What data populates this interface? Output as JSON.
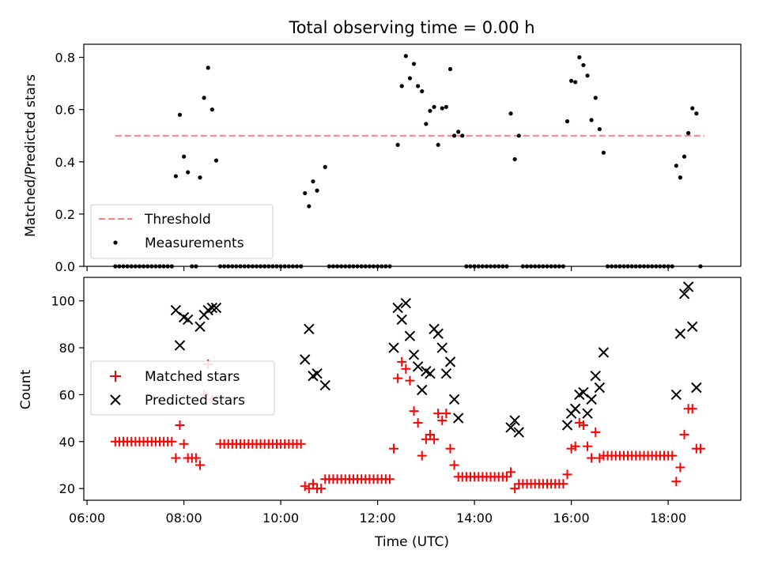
{
  "figure": {
    "title": "Total observing time = 0.00 h"
  },
  "chart_data": [
    {
      "type": "scatter",
      "ylabel": "Matched/Predicted stars",
      "xlim": [
        "06:00",
        "19:30"
      ],
      "ylim": [
        0,
        0.85
      ],
      "yticks": [
        "0.0",
        "0.2",
        "0.4",
        "0.6",
        "0.8"
      ],
      "legend": {
        "position": "lower-left",
        "entries": [
          "Threshold",
          "Measurements"
        ]
      },
      "threshold": {
        "name": "Threshold",
        "value": 0.5,
        "x_range": [
          "06:35",
          "18:45"
        ],
        "color": "#ff7f7f"
      },
      "series": [
        {
          "name": "Measurements",
          "color": "#000000",
          "points": [
            [
              "07:50",
              0.345
            ],
            [
              "07:55",
              0.58
            ],
            [
              "08:00",
              0.42
            ],
            [
              "08:05",
              0.36
            ],
            [
              "08:10",
              0.0
            ],
            [
              "08:15",
              0.0
            ],
            [
              "08:20",
              0.34
            ],
            [
              "08:25",
              0.645
            ],
            [
              "08:30",
              0.76
            ],
            [
              "08:35",
              0.6
            ],
            [
              "08:40",
              0.405
            ],
            [
              "10:30",
              0.28
            ],
            [
              "10:35",
              0.23
            ],
            [
              "10:40",
              0.325
            ],
            [
              "10:45",
              0.29
            ],
            [
              "10:55",
              0.38
            ],
            [
              "12:25",
              0.465
            ],
            [
              "12:30",
              0.69
            ],
            [
              "12:35",
              0.805
            ],
            [
              "12:40",
              0.72
            ],
            [
              "12:45",
              0.775
            ],
            [
              "12:50",
              0.69
            ],
            [
              "12:55",
              0.67
            ],
            [
              "13:00",
              0.545
            ],
            [
              "13:05",
              0.595
            ],
            [
              "13:10",
              0.61
            ],
            [
              "13:15",
              0.465
            ],
            [
              "13:20",
              0.605
            ],
            [
              "13:25",
              0.61
            ],
            [
              "13:30",
              0.755
            ],
            [
              "13:35",
              0.5
            ],
            [
              "13:40",
              0.515
            ],
            [
              "13:45",
              0.5
            ],
            [
              "14:45",
              0.585
            ],
            [
              "14:50",
              0.41
            ],
            [
              "14:55",
              0.5
            ],
            [
              "15:55",
              0.555
            ],
            [
              "16:00",
              0.71
            ],
            [
              "16:05",
              0.705
            ],
            [
              "16:10",
              0.8
            ],
            [
              "16:15",
              0.77
            ],
            [
              "16:20",
              0.73
            ],
            [
              "16:25",
              0.56
            ],
            [
              "16:30",
              0.645
            ],
            [
              "16:35",
              0.525
            ],
            [
              "16:40",
              0.435
            ],
            [
              "18:10",
              0.385
            ],
            [
              "18:15",
              0.34
            ],
            [
              "18:20",
              0.42
            ],
            [
              "18:25",
              0.51
            ],
            [
              "18:30",
              0.605
            ],
            [
              "18:35",
              0.585
            ],
            [
              "18:40",
              0.0
            ]
          ],
          "zero_runs": [
            [
              "06:35",
              "07:45"
            ],
            [
              "08:45",
              "10:25"
            ],
            [
              "11:00",
              "12:15"
            ],
            [
              "13:50",
              "14:40"
            ],
            [
              "15:00",
              "15:50"
            ],
            [
              "16:45",
              "18:05"
            ]
          ],
          "zero_step_minutes": 5
        }
      ]
    },
    {
      "type": "scatter",
      "xlabel": "Time (UTC)",
      "ylabel": "Count",
      "xticks": [
        "06:00",
        "08:00",
        "10:00",
        "12:00",
        "14:00",
        "16:00",
        "18:00"
      ],
      "ylim": [
        15,
        110
      ],
      "yticks": [
        "20",
        "40",
        "60",
        "80",
        "100"
      ],
      "legend": {
        "position": "center-left",
        "entries": [
          "Matched stars",
          "Predicted stars"
        ]
      },
      "series": [
        {
          "name": "Matched stars",
          "marker": "plus",
          "color": "#ff0000",
          "runs": [
            {
              "from": "06:35",
              "to": "07:45",
              "value": 40
            },
            {
              "from": "08:45",
              "to": "10:25",
              "value": 39
            },
            {
              "from": "11:05",
              "to": "12:10",
              "value": 24
            },
            {
              "from": "13:45",
              "to": "14:40",
              "value": 25
            },
            {
              "from": "15:00",
              "to": "15:50",
              "value": 22
            },
            {
              "from": "16:40",
              "to": "18:05",
              "value": 34
            }
          ],
          "points": [
            [
              "07:50",
              33
            ],
            [
              "07:55",
              47
            ],
            [
              "08:00",
              39
            ],
            [
              "08:05",
              33
            ],
            [
              "08:10",
              33
            ],
            [
              "08:15",
              33
            ],
            [
              "08:20",
              30
            ],
            [
              "08:25",
              60
            ],
            [
              "08:30",
              73
            ],
            [
              "08:35",
              58
            ],
            [
              "10:30",
              21
            ],
            [
              "10:35",
              20
            ],
            [
              "10:40",
              22
            ],
            [
              "10:45",
              20
            ],
            [
              "10:50",
              20
            ],
            [
              "10:55",
              24
            ],
            [
              "11:00",
              24
            ],
            [
              "12:15",
              24
            ],
            [
              "12:20",
              37
            ],
            [
              "12:25",
              67
            ],
            [
              "12:30",
              74
            ],
            [
              "12:35",
              71
            ],
            [
              "12:40",
              66
            ],
            [
              "12:45",
              53
            ],
            [
              "12:50",
              48
            ],
            [
              "12:55",
              34
            ],
            [
              "13:00",
              41
            ],
            [
              "13:05",
              43
            ],
            [
              "13:10",
              41
            ],
            [
              "13:15",
              52
            ],
            [
              "13:20",
              49
            ],
            [
              "13:25",
              52
            ],
            [
              "13:30",
              37
            ],
            [
              "13:35",
              30
            ],
            [
              "13:40",
              25
            ],
            [
              "14:45",
              27
            ],
            [
              "14:50",
              20
            ],
            [
              "14:55",
              22
            ],
            [
              "15:55",
              26
            ],
            [
              "16:00",
              37
            ],
            [
              "16:05",
              38
            ],
            [
              "16:10",
              48
            ],
            [
              "16:15",
              47
            ],
            [
              "16:20",
              38
            ],
            [
              "16:25",
              33
            ],
            [
              "16:30",
              44
            ],
            [
              "16:35",
              33
            ],
            [
              "18:10",
              23
            ],
            [
              "18:15",
              29
            ],
            [
              "18:20",
              43
            ],
            [
              "18:25",
              54
            ],
            [
              "18:30",
              54
            ],
            [
              "18:35",
              37
            ],
            [
              "18:40",
              37
            ]
          ]
        },
        {
          "name": "Predicted stars",
          "marker": "x",
          "color": "#000000",
          "points": [
            [
              "07:50",
              96
            ],
            [
              "07:55",
              81
            ],
            [
              "08:00",
              93
            ],
            [
              "08:05",
              92
            ],
            [
              "08:20",
              89
            ],
            [
              "08:25",
              94
            ],
            [
              "08:30",
              96
            ],
            [
              "08:35",
              97
            ],
            [
              "08:40",
              97
            ],
            [
              "10:30",
              75
            ],
            [
              "10:35",
              88
            ],
            [
              "10:40",
              68
            ],
            [
              "10:45",
              69
            ],
            [
              "10:55",
              64
            ],
            [
              "12:20",
              80
            ],
            [
              "12:25",
              97
            ],
            [
              "12:30",
              92
            ],
            [
              "12:35",
              99
            ],
            [
              "12:40",
              85
            ],
            [
              "12:45",
              77
            ],
            [
              "12:50",
              72
            ],
            [
              "12:55",
              62
            ],
            [
              "13:00",
              70
            ],
            [
              "13:05",
              69
            ],
            [
              "13:10",
              88
            ],
            [
              "13:15",
              86
            ],
            [
              "13:20",
              80
            ],
            [
              "13:25",
              69
            ],
            [
              "13:30",
              74
            ],
            [
              "13:35",
              58
            ],
            [
              "13:40",
              50
            ],
            [
              "14:45",
              46
            ],
            [
              "14:50",
              49
            ],
            [
              "14:55",
              44
            ],
            [
              "15:55",
              47
            ],
            [
              "16:00",
              52
            ],
            [
              "16:05",
              54
            ],
            [
              "16:10",
              60
            ],
            [
              "16:15",
              61
            ],
            [
              "16:20",
              52
            ],
            [
              "16:25",
              58
            ],
            [
              "16:30",
              68
            ],
            [
              "16:35",
              63
            ],
            [
              "16:40",
              78
            ],
            [
              "18:10",
              60
            ],
            [
              "18:15",
              86
            ],
            [
              "18:20",
              103
            ],
            [
              "18:25",
              106
            ],
            [
              "18:30",
              89
            ],
            [
              "18:35",
              63
            ]
          ]
        }
      ]
    }
  ]
}
